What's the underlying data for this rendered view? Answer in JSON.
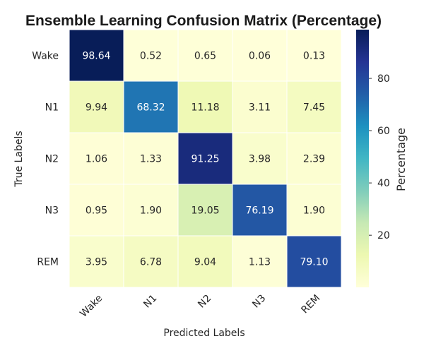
{
  "chart_data": {
    "type": "heatmap",
    "title": "Ensemble Learning Confusion Matrix (Percentage)",
    "xlabel": "Predicted Labels",
    "ylabel": "True Labels",
    "x_categories": [
      "Wake",
      "N1",
      "N2",
      "N3",
      "REM"
    ],
    "y_categories": [
      "Wake",
      "N1",
      "N2",
      "N3",
      "REM"
    ],
    "values": [
      [
        98.64,
        0.52,
        0.65,
        0.06,
        0.13
      ],
      [
        9.94,
        68.32,
        11.18,
        3.11,
        7.45
      ],
      [
        1.06,
        1.33,
        91.25,
        3.98,
        2.39
      ],
      [
        0.95,
        1.9,
        19.05,
        76.19,
        1.9
      ],
      [
        3.95,
        6.78,
        9.04,
        1.13,
        79.1
      ]
    ],
    "value_labels": [
      [
        "98.64",
        "0.52",
        "0.65",
        "0.06",
        "0.13"
      ],
      [
        "9.94",
        "68.32",
        "11.18",
        "3.11",
        "7.45"
      ],
      [
        "1.06",
        "1.33",
        "91.25",
        "3.98",
        "2.39"
      ],
      [
        "0.95",
        "1.90",
        "19.05",
        "76.19",
        "1.90"
      ],
      [
        "3.95",
        "6.78",
        "9.04",
        "1.13",
        "79.10"
      ]
    ],
    "colormap": "YlGnBu",
    "color_range": [
      0.06,
      98.64
    ],
    "colorbar": {
      "label": "Percentage",
      "ticks": [
        20,
        40,
        60,
        80
      ],
      "tick_labels": [
        "20",
        "40",
        "60",
        "80"
      ]
    }
  }
}
